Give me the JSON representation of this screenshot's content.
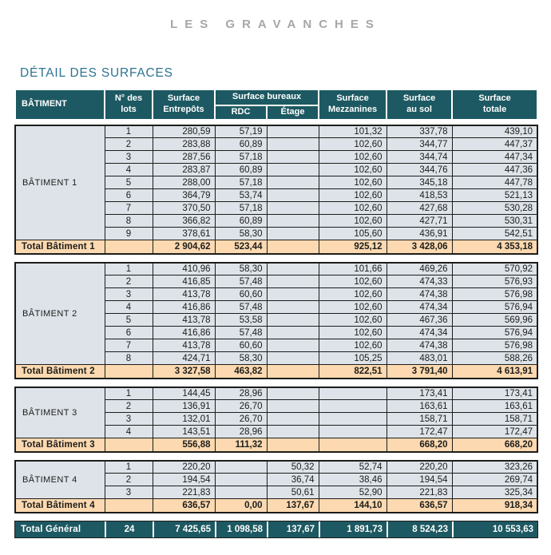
{
  "page": {
    "brand": "LES GRAVANCHES",
    "title": "DÉTAIL DES SURFACES"
  },
  "colors": {
    "header_bg": "#1d5962",
    "header_text": "#ffffff",
    "row_bg": "#dde3e9",
    "total_row_bg": "#fcd9b0",
    "grand_total_bg": "#1d5962",
    "border": "#1d1d1b",
    "doc_title": "#2e7490",
    "brand_gray": "#a7a7a7"
  },
  "table": {
    "headers": {
      "batiment": "BÂTIMENT",
      "lots": "N° des\nlots",
      "entrepots": "Surface\nEntrepôts",
      "bureaux_group": "Surface bureaux",
      "rdc": "RDC",
      "etage": "Étage",
      "mezzanines": "Surface\nMezzanines",
      "au_sol": "Surface\nau sol",
      "totale": "Surface\ntotale"
    },
    "columns_order": [
      "lot",
      "entrepots",
      "rdc",
      "etage",
      "mezzanines",
      "au_sol",
      "totale"
    ],
    "sections": [
      {
        "name": "BÂTIMENT 1",
        "rows": [
          [
            "1",
            "280,59",
            "57,19",
            "",
            "101,32",
            "337,78",
            "439,10"
          ],
          [
            "2",
            "283,88",
            "60,89",
            "",
            "102,60",
            "344,77",
            "447,37"
          ],
          [
            "3",
            "287,56",
            "57,18",
            "",
            "102,60",
            "344,74",
            "447,34"
          ],
          [
            "4",
            "283,87",
            "60,89",
            "",
            "102,60",
            "344,76",
            "447,36"
          ],
          [
            "5",
            "288,00",
            "57,18",
            "",
            "102,60",
            "345,18",
            "447,78"
          ],
          [
            "6",
            "364,79",
            "53,74",
            "",
            "102,60",
            "418,53",
            "521,13"
          ],
          [
            "7",
            "370,50",
            "57,18",
            "",
            "102,60",
            "427,68",
            "530,28"
          ],
          [
            "8",
            "366,82",
            "60,89",
            "",
            "102,60",
            "427,71",
            "530,31"
          ],
          [
            "9",
            "378,61",
            "58,30",
            "",
            "105,60",
            "436,91",
            "542,51"
          ]
        ],
        "total": {
          "label": "Total Bâtiment 1",
          "values": [
            "",
            "2 904,62",
            "523,44",
            "",
            "925,12",
            "3 428,06",
            "4 353,18"
          ]
        }
      },
      {
        "name": "BÂTIMENT 2",
        "rows": [
          [
            "1",
            "410,96",
            "58,30",
            "",
            "101,66",
            "469,26",
            "570,92"
          ],
          [
            "2",
            "416,85",
            "57,48",
            "",
            "102,60",
            "474,33",
            "576,93"
          ],
          [
            "3",
            "413,78",
            "60,60",
            "",
            "102,60",
            "474,38",
            "576,98"
          ],
          [
            "4",
            "416,86",
            "57,48",
            "",
            "102,60",
            "474,34",
            "576,94"
          ],
          [
            "5",
            "413,78",
            "53,58",
            "",
            "102,60",
            "467,36",
            "569,96"
          ],
          [
            "6",
            "416,86",
            "57,48",
            "",
            "102,60",
            "474,34",
            "576,94"
          ],
          [
            "7",
            "413,78",
            "60,60",
            "",
            "102,60",
            "474,38",
            "576,98"
          ],
          [
            "8",
            "424,71",
            "58,30",
            "",
            "105,25",
            "483,01",
            "588,26"
          ]
        ],
        "total": {
          "label": "Total Bâtiment 2",
          "values": [
            "",
            "3 327,58",
            "463,82",
            "",
            "822,51",
            "3 791,40",
            "4 613,91"
          ]
        }
      },
      {
        "name": "BÂTIMENT 3",
        "rows": [
          [
            "1",
            "144,45",
            "28,96",
            "",
            "",
            "173,41",
            "173,41"
          ],
          [
            "2",
            "136,91",
            "26,70",
            "",
            "",
            "163,61",
            "163,61"
          ],
          [
            "3",
            "132,01",
            "26,70",
            "",
            "",
            "158,71",
            "158,71"
          ],
          [
            "4",
            "143,51",
            "28,96",
            "",
            "",
            "172,47",
            "172,47"
          ]
        ],
        "total": {
          "label": "Total Bâtiment 3",
          "values": [
            "",
            "556,88",
            "111,32",
            "",
            "",
            "668,20",
            "668,20"
          ]
        }
      },
      {
        "name": "BÂTIMENT 4",
        "rows": [
          [
            "1",
            "220,20",
            "",
            "50,32",
            "52,74",
            "220,20",
            "323,26"
          ],
          [
            "2",
            "194,54",
            "",
            "36,74",
            "38,46",
            "194,54",
            "269,74"
          ],
          [
            "3",
            "221,83",
            "",
            "50,61",
            "52,90",
            "221,83",
            "325,34"
          ]
        ],
        "total": {
          "label": "Total Bâtiment 4",
          "values": [
            "",
            "636,57",
            "0,00",
            "137,67",
            "144,10",
            "636,57",
            "918,34"
          ]
        }
      }
    ],
    "grand_total": {
      "label": "Total Général",
      "values": [
        "24",
        "7 425,65",
        "1 098,58",
        "137,67",
        "1 891,73",
        "8 524,23",
        "10 553,63"
      ]
    }
  }
}
